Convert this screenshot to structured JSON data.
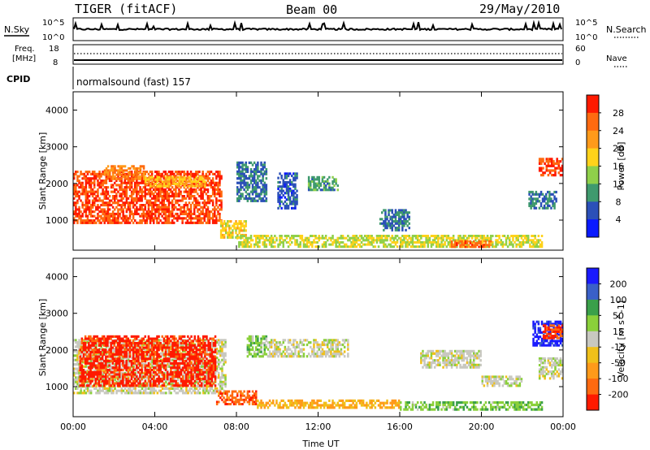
{
  "header": {
    "radar": "TIGER (fitACF)",
    "beam": "Beam 00",
    "date": "29/May/2010"
  },
  "summary": {
    "nsky_label": "N.Sky",
    "nsearch_label": "N.Search",
    "nsky_ticks": [
      "10^5",
      "10^0"
    ],
    "nsearch_ticks": [
      "10^5",
      "10^0"
    ],
    "freq_label_1": "Freq.",
    "freq_label_2": "[MHz]",
    "freq_ticks": [
      "18",
      "8"
    ],
    "nave_label": "Nave",
    "nave_ticks": [
      "60",
      "0"
    ],
    "cpid_label": "CPID",
    "cpid_value": "normalsound (fast) 157"
  },
  "colors": {
    "power": [
      "#0a1aff",
      "#2b50b8",
      "#3f9a6e",
      "#8fd04a",
      "#ffd21a",
      "#ff9a1a",
      "#ff6a10",
      "#ff1a00"
    ],
    "velocity": [
      "#1a1aff",
      "#3a60c8",
      "#3aa04a",
      "#8ad03a",
      "#c8c8c0",
      "#f0c01a",
      "#ff9a1a",
      "#ff6a10",
      "#ff1a00"
    ]
  },
  "chart_data": [
    {
      "type": "heatmap",
      "name": "power",
      "xlabel": "",
      "ylabel": "Slant Range [km]",
      "xlim": [
        0,
        24
      ],
      "ylim": [
        180,
        4500
      ],
      "xticks": [
        "00:00",
        "04:00",
        "08:00",
        "12:00",
        "16:00",
        "20:00",
        "00:00"
      ],
      "yticks": [
        1000,
        2000,
        3000,
        4000
      ],
      "colorbar_label": "Power [dB]",
      "colorbar_ticks": [
        "28",
        "24",
        "20",
        "16",
        "12",
        "8",
        "4"
      ],
      "colorbar_range": [
        0,
        32
      ],
      "regions": [
        {
          "x": [
            0.0,
            7.3
          ],
          "y": [
            900,
            2350
          ],
          "value": 28
        },
        {
          "x": [
            1.5,
            3.5
          ],
          "y": [
            2100,
            2500
          ],
          "value": 24
        },
        {
          "x": [
            3.5,
            6.5
          ],
          "y": [
            1900,
            2200
          ],
          "value": 20
        },
        {
          "x": [
            7.2,
            8.5
          ],
          "y": [
            500,
            1000
          ],
          "value": 18
        },
        {
          "x": [
            8.0,
            9.5
          ],
          "y": [
            1500,
            2600
          ],
          "value": 8
        },
        {
          "x": [
            10.0,
            11.0
          ],
          "y": [
            1300,
            2300
          ],
          "value": 6
        },
        {
          "x": [
            11.5,
            13.0
          ],
          "y": [
            1800,
            2200
          ],
          "value": 10
        },
        {
          "x": [
            15.0,
            16.5
          ],
          "y": [
            700,
            1300
          ],
          "value": 8
        },
        {
          "x": [
            8.0,
            23.0
          ],
          "y": [
            250,
            600
          ],
          "value": 16
        },
        {
          "x": [
            18.5,
            20.5
          ],
          "y": [
            250,
            450
          ],
          "value": 26
        },
        {
          "x": [
            22.3,
            23.7
          ],
          "y": [
            1300,
            1800
          ],
          "value": 8
        },
        {
          "x": [
            22.8,
            24.0
          ],
          "y": [
            2200,
            2700
          ],
          "value": 28
        }
      ]
    },
    {
      "type": "heatmap",
      "name": "velocity",
      "xlabel": "Time UT",
      "ylabel": "Slant Range [km]",
      "xlim": [
        0,
        24
      ],
      "ylim": [
        180,
        4500
      ],
      "xticks": [
        "00:00",
        "04:00",
        "08:00",
        "12:00",
        "16:00",
        "20:00",
        "00:00"
      ],
      "yticks": [
        1000,
        2000,
        3000,
        4000
      ],
      "colorbar_label": "Velocity [m s^-1]",
      "colorbar_ticks": [
        "200",
        "100",
        "50",
        "15",
        "-15",
        "-50",
        "-100",
        "-200"
      ],
      "colorbar_range": [
        -250,
        250
      ],
      "regions": [
        {
          "x": [
            0.0,
            7.5
          ],
          "y": [
            800,
            2300
          ],
          "value": 0
        },
        {
          "x": [
            0.3,
            7.0
          ],
          "y": [
            1000,
            2400
          ],
          "value": -220
        },
        {
          "x": [
            7.0,
            9.0
          ],
          "y": [
            500,
            900
          ],
          "value": -180
        },
        {
          "x": [
            9.0,
            16.0
          ],
          "y": [
            400,
            650
          ],
          "value": -80
        },
        {
          "x": [
            9.5,
            13.5
          ],
          "y": [
            1800,
            2300
          ],
          "value": 0
        },
        {
          "x": [
            8.5,
            9.5
          ],
          "y": [
            1800,
            2400
          ],
          "value": 60
        },
        {
          "x": [
            16.0,
            23.0
          ],
          "y": [
            350,
            600
          ],
          "value": 70
        },
        {
          "x": [
            17.0,
            20.0
          ],
          "y": [
            1500,
            2000
          ],
          "value": 0
        },
        {
          "x": [
            20.0,
            22.0
          ],
          "y": [
            1000,
            1300
          ],
          "value": 0
        },
        {
          "x": [
            22.5,
            24.0
          ],
          "y": [
            2100,
            2800
          ],
          "value": 220
        },
        {
          "x": [
            23.0,
            24.0
          ],
          "y": [
            2300,
            2700
          ],
          "value": -200
        },
        {
          "x": [
            22.8,
            24.0
          ],
          "y": [
            1200,
            1800
          ],
          "value": 0
        }
      ]
    }
  ]
}
